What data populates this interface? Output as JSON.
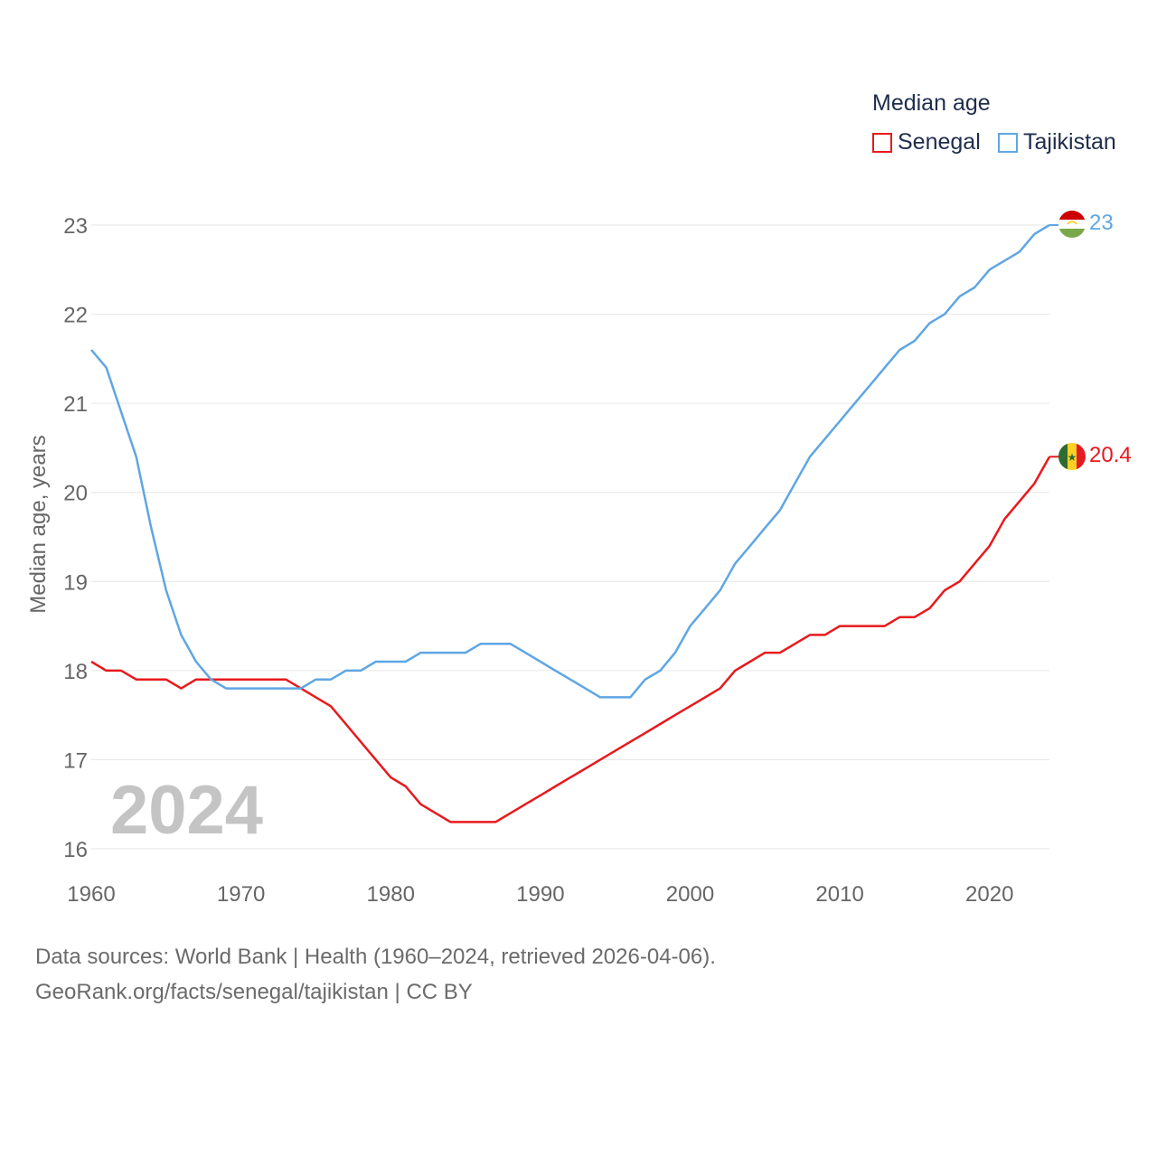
{
  "chart_data": {
    "type": "line",
    "legend_title": "Median age",
    "ylabel": "Median age, years",
    "year_label": "2024",
    "xlim": [
      1960,
      2024
    ],
    "ylim": [
      16,
      23
    ],
    "x_ticks": [
      1960,
      1970,
      1980,
      1990,
      2000,
      2010,
      2020
    ],
    "y_ticks": [
      16,
      17,
      18,
      19,
      20,
      21,
      22,
      23
    ],
    "x": [
      1960,
      1961,
      1962,
      1963,
      1964,
      1965,
      1966,
      1967,
      1968,
      1969,
      1970,
      1971,
      1972,
      1973,
      1974,
      1975,
      1976,
      1977,
      1978,
      1979,
      1980,
      1981,
      1982,
      1983,
      1984,
      1985,
      1986,
      1987,
      1988,
      1989,
      1990,
      1991,
      1992,
      1993,
      1994,
      1995,
      1996,
      1997,
      1998,
      1999,
      2000,
      2001,
      2002,
      2003,
      2004,
      2005,
      2006,
      2007,
      2008,
      2009,
      2010,
      2011,
      2012,
      2013,
      2014,
      2015,
      2016,
      2017,
      2018,
      2019,
      2020,
      2021,
      2022,
      2023,
      2024
    ],
    "series": [
      {
        "name": "Senegal",
        "color": "#e8191d",
        "end_label": "20.4",
        "flag": "senegal-flag",
        "values": [
          18.1,
          18.0,
          18.0,
          17.9,
          17.9,
          17.9,
          17.8,
          17.9,
          17.9,
          17.9,
          17.9,
          17.9,
          17.9,
          17.9,
          17.8,
          17.7,
          17.6,
          17.4,
          17.2,
          17.0,
          16.8,
          16.7,
          16.5,
          16.4,
          16.3,
          16.3,
          16.3,
          16.3,
          16.4,
          16.5,
          16.6,
          16.7,
          16.8,
          16.9,
          17.0,
          17.1,
          17.2,
          17.3,
          17.4,
          17.5,
          17.6,
          17.7,
          17.8,
          18.0,
          18.1,
          18.2,
          18.2,
          18.3,
          18.4,
          18.4,
          18.5,
          18.5,
          18.5,
          18.5,
          18.6,
          18.6,
          18.7,
          18.9,
          19.0,
          19.2,
          19.4,
          19.7,
          19.9,
          20.1,
          20.4
        ]
      },
      {
        "name": "Tajikistan",
        "color": "#5fa6e3",
        "end_label": "23",
        "flag": "tajikistan-flag",
        "values": [
          21.6,
          21.4,
          20.9,
          20.4,
          19.6,
          18.9,
          18.4,
          18.1,
          17.9,
          17.8,
          17.8,
          17.8,
          17.8,
          17.8,
          17.8,
          17.9,
          17.9,
          18.0,
          18.0,
          18.1,
          18.1,
          18.1,
          18.2,
          18.2,
          18.2,
          18.2,
          18.3,
          18.3,
          18.3,
          18.2,
          18.1,
          18.0,
          17.9,
          17.8,
          17.7,
          17.7,
          17.7,
          17.9,
          18.0,
          18.2,
          18.5,
          18.7,
          18.9,
          19.2,
          19.4,
          19.6,
          19.8,
          20.1,
          20.4,
          20.6,
          20.8,
          21.0,
          21.2,
          21.4,
          21.6,
          21.7,
          21.9,
          22.0,
          22.2,
          22.3,
          22.5,
          22.6,
          22.7,
          22.9,
          23.0
        ]
      }
    ]
  },
  "footer": {
    "sources": "Data sources: World Bank | Health (1960–2024, retrieved 2026-04-06).",
    "credit": "GeoRank.org/facts/senegal/tajikistan | CC BY"
  }
}
